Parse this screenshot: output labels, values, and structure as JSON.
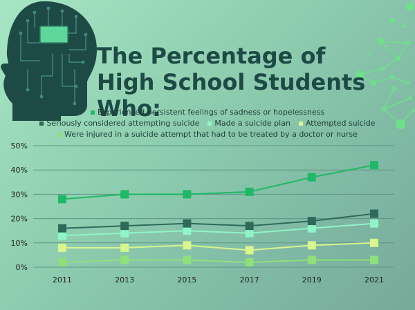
{
  "title": "The Percentage of High School Students Who:",
  "colors": {
    "head": "#1e4a46",
    "chip": "#5fd69a",
    "network": "#6fe08a"
  },
  "chart_data": {
    "type": "line",
    "categories": [
      "2011",
      "2013",
      "2015",
      "2017",
      "2019",
      "2021"
    ],
    "ylim": [
      0,
      50
    ],
    "yticks": [
      "0%",
      "10%",
      "20%",
      "30%",
      "40%",
      "50%"
    ],
    "series": [
      {
        "name": "Experienced persistent feelings of sadness or hopelessness",
        "color": "#1fb866",
        "values": [
          28,
          30,
          30,
          31,
          37,
          42
        ]
      },
      {
        "name": "Seriously considered attempting suicide",
        "color": "#2d6a5a",
        "values": [
          16,
          17,
          18,
          17,
          19,
          22
        ]
      },
      {
        "name": "Made a suicide plan",
        "color": "#8ff5c8",
        "values": [
          13,
          14,
          15,
          14,
          16,
          18
        ]
      },
      {
        "name": "Attempted suicide",
        "color": "#d8f58e",
        "values": [
          8,
          8,
          9,
          7,
          9,
          10
        ]
      },
      {
        "name": "Were injured in a suicide attempt that had to be treated by a doctor or nurse",
        "color": "#8fe07a",
        "values": [
          2,
          3,
          3,
          2,
          3,
          3
        ]
      }
    ],
    "grid": true,
    "legend": "top"
  }
}
